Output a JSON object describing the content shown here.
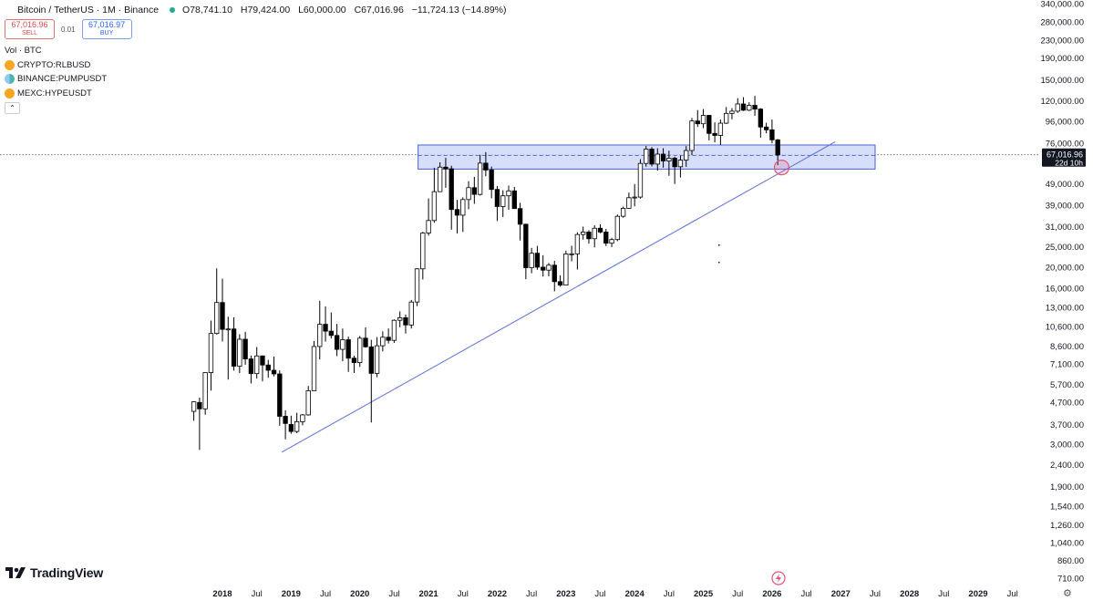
{
  "header": {
    "symbol_title": "Bitcoin / TetherUS · 1M · Binance",
    "open": "O78,741.10",
    "high": "H79,424.00",
    "low": "L60,000.00",
    "close": "C67,016.96",
    "change": "−11,724.13 (−14.89%)",
    "status_color": "#22ab94"
  },
  "trade": {
    "sell_price": "67,016.96",
    "sell_label": "SELL",
    "spread": "0.01",
    "buy_price": "67,016.97",
    "buy_label": "BUY"
  },
  "studies": {
    "volume_label": "Vol · BTC",
    "items": [
      {
        "label": "CRYPTO:RLBUSD",
        "icon_color": "#f5a623"
      },
      {
        "label": "BINANCE:PUMPUSDT",
        "icon_color": "#4db6ac"
      },
      {
        "label": "MEXC:HYPEUSDT",
        "icon_color": "#f5a623"
      }
    ],
    "collapse_icon": "chevron-up-icon"
  },
  "brand": {
    "name": "TradingView"
  },
  "colors": {
    "up": "#ffffff",
    "down": "#000000",
    "wick": "#000000",
    "trendline": "#5b6fd6",
    "zone_fill": "#c9d3f7",
    "zone_border": "#4a63d8",
    "marker": "#e0557a"
  },
  "chart_data": {
    "type": "candlestick",
    "scale": "log",
    "ylim": [
      640,
      340000
    ],
    "xlim": [
      "2017-06",
      "2029-12"
    ],
    "y_ticks": [
      "340,000.00",
      "280,000.00",
      "230,000.00",
      "190,000.00",
      "150,000.00",
      "120,000.00",
      "96,000.00",
      "76,000.00",
      "49,000.00",
      "39,000.00",
      "31,000.00",
      "25,000.00",
      "20,000.00",
      "16,000.00",
      "13,000.00",
      "10,600.00",
      "8,600.00",
      "7,100.00",
      "5,700.00",
      "4,700.00",
      "3,700.00",
      "3,000.00",
      "2,400.00",
      "1,900.00",
      "1,540.00",
      "1,260.00",
      "1,040.00",
      "860.00",
      "710.00"
    ],
    "x_ticks": [
      {
        "label": "2018",
        "date": "2018-01",
        "bold": true
      },
      {
        "label": "Jul",
        "date": "2018-07"
      },
      {
        "label": "2019",
        "date": "2019-01",
        "bold": true
      },
      {
        "label": "Jul",
        "date": "2019-07"
      },
      {
        "label": "2020",
        "date": "2020-01",
        "bold": true
      },
      {
        "label": "Jul",
        "date": "2020-07"
      },
      {
        "label": "2021",
        "date": "2021-01",
        "bold": true
      },
      {
        "label": "Jul",
        "date": "2021-07"
      },
      {
        "label": "2022",
        "date": "2022-01",
        "bold": true
      },
      {
        "label": "Jul",
        "date": "2022-07"
      },
      {
        "label": "2023",
        "date": "2023-01",
        "bold": true
      },
      {
        "label": "Jul",
        "date": "2023-07"
      },
      {
        "label": "2024",
        "date": "2024-01",
        "bold": true
      },
      {
        "label": "Jul",
        "date": "2024-07"
      },
      {
        "label": "2025",
        "date": "2025-01",
        "bold": true
      },
      {
        "label": "Jul",
        "date": "2025-07"
      },
      {
        "label": "2026",
        "date": "2026-01",
        "bold": true
      },
      {
        "label": "Jul",
        "date": "2026-07"
      },
      {
        "label": "2027",
        "date": "2027-01",
        "bold": true
      },
      {
        "label": "Jul",
        "date": "2027-07"
      },
      {
        "label": "2028",
        "date": "2028-01",
        "bold": true
      },
      {
        "label": "Jul",
        "date": "2028-07"
      },
      {
        "label": "2029",
        "date": "2029-01",
        "bold": true
      },
      {
        "label": "Jul",
        "date": "2029-07"
      }
    ],
    "last_price": {
      "value": 67016.96,
      "label": "67,016.96",
      "countdown": "22d 10h"
    },
    "candles": [
      {
        "date": "2017-08",
        "o": 4261,
        "h": 4745,
        "l": 3850,
        "c": 4724
      },
      {
        "date": "2017-09",
        "o": 4690,
        "h": 4939,
        "l": 2817,
        "c": 4378
      },
      {
        "date": "2017-10",
        "o": 4378,
        "h": 6470,
        "l": 4110,
        "c": 6463
      },
      {
        "date": "2017-11",
        "o": 6463,
        "h": 11300,
        "l": 5325,
        "c": 9838
      },
      {
        "date": "2017-12",
        "o": 9838,
        "h": 19798,
        "l": 9722,
        "c": 13716
      },
      {
        "date": "2018-01",
        "o": 13716,
        "h": 17712,
        "l": 9035,
        "c": 10285
      },
      {
        "date": "2018-02",
        "o": 10285,
        "h": 11786,
        "l": 6000,
        "c": 10326
      },
      {
        "date": "2018-03",
        "o": 10325,
        "h": 11710,
        "l": 6600,
        "c": 6923
      },
      {
        "date": "2018-04",
        "o": 6922,
        "h": 9759,
        "l": 6430,
        "c": 9246
      },
      {
        "date": "2018-05",
        "o": 9246,
        "h": 10020,
        "l": 7032,
        "c": 7485
      },
      {
        "date": "2018-06",
        "o": 7485,
        "h": 7760,
        "l": 5750,
        "c": 6390
      },
      {
        "date": "2018-07",
        "o": 6391,
        "h": 8507,
        "l": 6070,
        "c": 7730
      },
      {
        "date": "2018-08",
        "o": 7735,
        "h": 7750,
        "l": 5880,
        "c": 7011
      },
      {
        "date": "2018-09",
        "o": 7011,
        "h": 7410,
        "l": 6111,
        "c": 6626
      },
      {
        "date": "2018-10",
        "o": 6626,
        "h": 7680,
        "l": 6205,
        "c": 6371
      },
      {
        "date": "2018-11",
        "o": 6369,
        "h": 6615,
        "l": 3652,
        "c": 4041
      },
      {
        "date": "2018-12",
        "o": 4041,
        "h": 4312,
        "l": 3156,
        "c": 3742
      },
      {
        "date": "2019-01",
        "o": 3701,
        "h": 4069,
        "l": 3349,
        "c": 3434
      },
      {
        "date": "2019-02",
        "o": 3434,
        "h": 4198,
        "l": 3373,
        "c": 3814
      },
      {
        "date": "2019-03",
        "o": 3814,
        "h": 4140,
        "l": 3670,
        "c": 4103
      },
      {
        "date": "2019-04",
        "o": 4103,
        "h": 5600,
        "l": 4067,
        "c": 5320
      },
      {
        "date": "2019-05",
        "o": 5320,
        "h": 9074,
        "l": 5320,
        "c": 8555
      },
      {
        "date": "2019-06",
        "o": 8555,
        "h": 13970,
        "l": 7444,
        "c": 10855
      },
      {
        "date": "2019-07",
        "o": 10855,
        "h": 13147,
        "l": 9010,
        "c": 10086
      },
      {
        "date": "2019-08",
        "o": 10086,
        "h": 12325,
        "l": 9320,
        "c": 9631
      },
      {
        "date": "2019-09",
        "o": 9631,
        "h": 10905,
        "l": 7710,
        "c": 8293
      },
      {
        "date": "2019-10",
        "o": 8293,
        "h": 10370,
        "l": 7300,
        "c": 9199
      },
      {
        "date": "2019-11",
        "o": 9199,
        "h": 9505,
        "l": 6515,
        "c": 7546
      },
      {
        "date": "2019-12",
        "o": 7546,
        "h": 7750,
        "l": 6435,
        "c": 7195
      },
      {
        "date": "2020-01",
        "o": 7195,
        "h": 9578,
        "l": 6871,
        "c": 9352
      },
      {
        "date": "2020-02",
        "o": 9352,
        "h": 10500,
        "l": 8445,
        "c": 8523
      },
      {
        "date": "2020-03",
        "o": 8523,
        "h": 9188,
        "l": 3782,
        "c": 6410
      },
      {
        "date": "2020-04",
        "o": 6412,
        "h": 9460,
        "l": 6150,
        "c": 8620
      },
      {
        "date": "2020-05",
        "o": 8621,
        "h": 10067,
        "l": 8117,
        "c": 9448
      },
      {
        "date": "2020-06",
        "o": 9448,
        "h": 10380,
        "l": 8833,
        "c": 9138
      },
      {
        "date": "2020-07",
        "o": 9138,
        "h": 11444,
        "l": 8893,
        "c": 11335
      },
      {
        "date": "2020-08",
        "o": 11335,
        "h": 12468,
        "l": 10518,
        "c": 11649
      },
      {
        "date": "2020-09",
        "o": 11649,
        "h": 12050,
        "l": 9825,
        "c": 10776
      },
      {
        "date": "2020-10",
        "o": 10776,
        "h": 14100,
        "l": 10375,
        "c": 13791
      },
      {
        "date": "2020-11",
        "o": 13791,
        "h": 19863,
        "l": 13195,
        "c": 19695
      },
      {
        "date": "2020-12",
        "o": 19695,
        "h": 29300,
        "l": 17572,
        "c": 28923
      },
      {
        "date": "2021-01",
        "o": 28923,
        "h": 41950,
        "l": 28130,
        "c": 33092
      },
      {
        "date": "2021-02",
        "o": 33092,
        "h": 58352,
        "l": 32296,
        "c": 45135
      },
      {
        "date": "2021-03",
        "o": 45134,
        "h": 61844,
        "l": 45000,
        "c": 58740
      },
      {
        "date": "2021-04",
        "o": 58739,
        "h": 64854,
        "l": 47044,
        "c": 57694
      },
      {
        "date": "2021-05",
        "o": 57697,
        "h": 59600,
        "l": 30000,
        "c": 37253
      },
      {
        "date": "2021-06",
        "o": 37253,
        "h": 41330,
        "l": 28805,
        "c": 35045
      },
      {
        "date": "2021-07",
        "o": 35045,
        "h": 42448,
        "l": 29278,
        "c": 41461
      },
      {
        "date": "2021-08",
        "o": 41461,
        "h": 50500,
        "l": 37332,
        "c": 47100
      },
      {
        "date": "2021-09",
        "o": 47100,
        "h": 52920,
        "l": 39600,
        "c": 43824
      },
      {
        "date": "2021-10",
        "o": 43820,
        "h": 67000,
        "l": 43283,
        "c": 61299
      },
      {
        "date": "2021-11",
        "o": 61300,
        "h": 69000,
        "l": 53256,
        "c": 56950
      },
      {
        "date": "2021-12",
        "o": 56950,
        "h": 59053,
        "l": 42000,
        "c": 46216
      },
      {
        "date": "2022-01",
        "o": 46216,
        "h": 47990,
        "l": 32917,
        "c": 38467
      },
      {
        "date": "2022-02",
        "o": 38466,
        "h": 45822,
        "l": 34322,
        "c": 43160
      },
      {
        "date": "2022-03",
        "o": 43160,
        "h": 48190,
        "l": 37155,
        "c": 45510
      },
      {
        "date": "2022-04",
        "o": 45510,
        "h": 47444,
        "l": 37578,
        "c": 37630
      },
      {
        "date": "2022-05",
        "o": 37631,
        "h": 40023,
        "l": 26700,
        "c": 31801
      },
      {
        "date": "2022-06",
        "o": 31801,
        "h": 31982,
        "l": 17622,
        "c": 19942
      },
      {
        "date": "2022-07",
        "o": 19942,
        "h": 24668,
        "l": 18781,
        "c": 23293
      },
      {
        "date": "2022-08",
        "o": 23296,
        "h": 25211,
        "l": 19520,
        "c": 20050
      },
      {
        "date": "2022-09",
        "o": 20049,
        "h": 22799,
        "l": 18125,
        "c": 19422
      },
      {
        "date": "2022-10",
        "o": 19422,
        "h": 20988,
        "l": 18190,
        "c": 20490
      },
      {
        "date": "2022-11",
        "o": 20490,
        "h": 21480,
        "l": 15476,
        "c": 17164
      },
      {
        "date": "2022-12",
        "o": 17165,
        "h": 18387,
        "l": 16256,
        "c": 16542
      },
      {
        "date": "2023-01",
        "o": 16541,
        "h": 23960,
        "l": 16499,
        "c": 23125
      },
      {
        "date": "2023-02",
        "o": 23125,
        "h": 25250,
        "l": 21351,
        "c": 23141
      },
      {
        "date": "2023-03",
        "o": 23141,
        "h": 29190,
        "l": 19549,
        "c": 28478
      },
      {
        "date": "2023-04",
        "o": 28478,
        "h": 31000,
        "l": 26942,
        "c": 29233
      },
      {
        "date": "2023-05",
        "o": 29233,
        "h": 29820,
        "l": 25811,
        "c": 27210
      },
      {
        "date": "2023-06",
        "o": 27210,
        "h": 31431,
        "l": 24800,
        "c": 30472
      },
      {
        "date": "2023-07",
        "o": 30471,
        "h": 31804,
        "l": 28861,
        "c": 29232
      },
      {
        "date": "2023-08",
        "o": 29232,
        "h": 30244,
        "l": 25166,
        "c": 25941
      },
      {
        "date": "2023-09",
        "o": 25941,
        "h": 27483,
        "l": 24901,
        "c": 26963
      },
      {
        "date": "2023-10",
        "o": 26962,
        "h": 35280,
        "l": 26521,
        "c": 34639
      },
      {
        "date": "2023-11",
        "o": 34640,
        "h": 38450,
        "l": 34097,
        "c": 37723
      },
      {
        "date": "2023-12",
        "o": 37723,
        "h": 44700,
        "l": 37615,
        "c": 42283
      },
      {
        "date": "2024-01",
        "o": 42284,
        "h": 48969,
        "l": 38555,
        "c": 42580
      },
      {
        "date": "2024-02",
        "o": 42580,
        "h": 64000,
        "l": 41884,
        "c": 61130
      },
      {
        "date": "2024-03",
        "o": 61130,
        "h": 73777,
        "l": 59005,
        "c": 71280
      },
      {
        "date": "2024-04",
        "o": 71281,
        "h": 72797,
        "l": 59191,
        "c": 60672
      },
      {
        "date": "2024-05",
        "o": 60672,
        "h": 71979,
        "l": 56552,
        "c": 67540
      },
      {
        "date": "2024-06",
        "o": 67540,
        "h": 71997,
        "l": 58402,
        "c": 62772
      },
      {
        "date": "2024-07",
        "o": 62773,
        "h": 70080,
        "l": 53485,
        "c": 64628
      },
      {
        "date": "2024-08",
        "o": 64628,
        "h": 65659,
        "l": 49000,
        "c": 58974
      },
      {
        "date": "2024-09",
        "o": 58974,
        "h": 66498,
        "l": 52550,
        "c": 63327
      },
      {
        "date": "2024-10",
        "o": 63327,
        "h": 73620,
        "l": 58946,
        "c": 70215
      },
      {
        "date": "2024-11",
        "o": 70215,
        "h": 99588,
        "l": 66835,
        "c": 96407
      },
      {
        "date": "2024-12",
        "o": 96408,
        "h": 108353,
        "l": 90500,
        "c": 93576
      },
      {
        "date": "2025-01",
        "o": 93576,
        "h": 109588,
        "l": 89256,
        "c": 102429
      },
      {
        "date": "2025-02",
        "o": 102429,
        "h": 102500,
        "l": 78258,
        "c": 84350
      },
      {
        "date": "2025-03",
        "o": 84350,
        "h": 95000,
        "l": 76606,
        "c": 82548
      },
      {
        "date": "2025-04",
        "o": 82548,
        "h": 97938,
        "l": 74508,
        "c": 94172
      },
      {
        "date": "2025-05",
        "o": 94172,
        "h": 111980,
        "l": 93377,
        "c": 104592
      },
      {
        "date": "2025-06",
        "o": 104592,
        "h": 110690,
        "l": 98200,
        "c": 107135
      },
      {
        "date": "2025-07",
        "o": 107135,
        "h": 123218,
        "l": 105100,
        "c": 115764
      },
      {
        "date": "2025-08",
        "o": 115764,
        "h": 124474,
        "l": 107350,
        "c": 108246
      },
      {
        "date": "2025-09",
        "o": 108246,
        "h": 117900,
        "l": 107270,
        "c": 114049
      },
      {
        "date": "2025-10",
        "o": 114049,
        "h": 126200,
        "l": 102000,
        "c": 109550
      },
      {
        "date": "2025-11",
        "o": 109550,
        "h": 110600,
        "l": 80600,
        "c": 90360
      },
      {
        "date": "2025-12",
        "o": 90360,
        "h": 94600,
        "l": 84450,
        "c": 87650
      },
      {
        "date": "2026-01",
        "o": 87650,
        "h": 97900,
        "l": 75800,
        "c": 78741
      },
      {
        "date": "2026-02",
        "o": 78741.1,
        "h": 79424,
        "l": 60000,
        "c": 67016.96
      }
    ],
    "annotations": {
      "resistance_zone": {
        "top": 74500,
        "bottom": 57500,
        "mid": 66500,
        "start": "2021-03",
        "end": "2029-12"
      },
      "trendline": {
        "p1": {
          "date": "2018-12",
          "price": 2830
        },
        "p2": {
          "date": "2026-12",
          "price": 77000
        }
      },
      "circle_marker": {
        "date": "2026-03",
        "price": 58500
      },
      "dots": [
        {
          "date": "2025-02",
          "price": 25400
        },
        {
          "date": "2025-02",
          "price": 21100
        }
      ]
    }
  }
}
